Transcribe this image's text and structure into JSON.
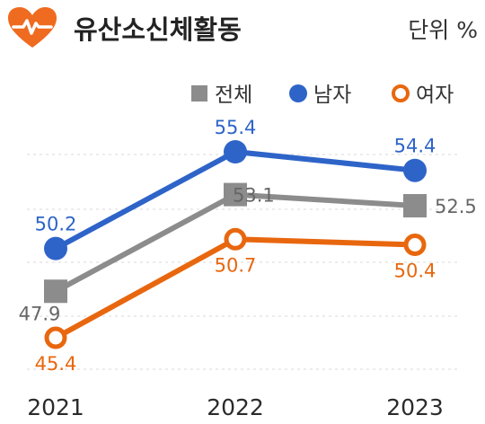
{
  "header": {
    "title": "유산소신체활동",
    "unit": "단위 %",
    "icon": "heart-pulse-icon"
  },
  "chart_data": {
    "type": "line",
    "title": "유산소신체활동",
    "unit_label": "단위 %",
    "categories": [
      "2021",
      "2022",
      "2023"
    ],
    "ylim": [
      44,
      57
    ],
    "grid": "horizontal-dashed",
    "legend_position": "top-right",
    "series": [
      {
        "name": "전체",
        "values": [
          47.9,
          53.1,
          52.5
        ],
        "labels": [
          "47.9",
          "53.1",
          "52.5"
        ],
        "color": "#8c8c8c",
        "marker": "square"
      },
      {
        "name": "남자",
        "values": [
          50.2,
          55.4,
          54.4
        ],
        "labels": [
          "50.2",
          "55.4",
          "54.4"
        ],
        "color": "#2e64c8",
        "marker": "circle"
      },
      {
        "name": "여자",
        "values": [
          45.4,
          50.7,
          50.4
        ],
        "labels": [
          "45.4",
          "50.7",
          "50.4"
        ],
        "color": "#e8670e",
        "marker": "ring"
      }
    ]
  }
}
